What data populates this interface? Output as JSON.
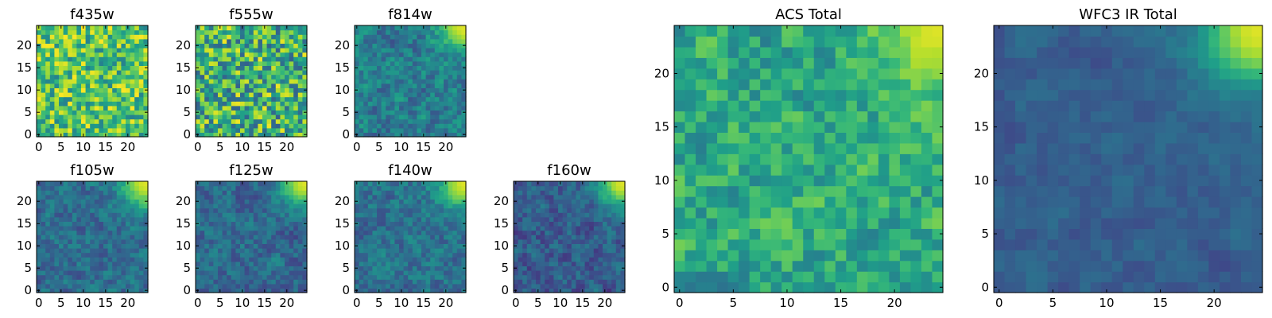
{
  "chart_data": [
    {
      "id": "f435w",
      "type": "heatmap",
      "title": "f435w",
      "grid_size": 25,
      "x_ticks": [
        0,
        5,
        10,
        15,
        20
      ],
      "y_ticks": [
        0,
        5,
        10,
        15,
        20
      ],
      "colormap": "viridis",
      "pattern": "noise",
      "base": 0.72,
      "noise": 0.28,
      "corner": 0.0,
      "seed": 11
    },
    {
      "id": "f555w",
      "type": "heatmap",
      "title": "f555w",
      "grid_size": 25,
      "x_ticks": [
        0,
        5,
        10,
        15,
        20
      ],
      "y_ticks": [
        0,
        5,
        10,
        15,
        20
      ],
      "colormap": "viridis",
      "pattern": "noise",
      "base": 0.64,
      "noise": 0.34,
      "corner": 0.0,
      "seed": 23
    },
    {
      "id": "f814w",
      "type": "heatmap",
      "title": "f814w",
      "grid_size": 25,
      "x_ticks": [
        0,
        5,
        10,
        15,
        20
      ],
      "y_ticks": [
        0,
        5,
        10,
        15,
        20
      ],
      "colormap": "viridis",
      "pattern": "corner",
      "base": 0.42,
      "noise": 0.24,
      "corner": 0.95,
      "seed": 37
    },
    {
      "id": "f105w",
      "type": "heatmap",
      "title": "f105w",
      "grid_size": 25,
      "x_ticks": [
        0,
        5,
        10,
        15,
        20
      ],
      "y_ticks": [
        0,
        5,
        10,
        15,
        20
      ],
      "colormap": "viridis",
      "pattern": "corner",
      "base": 0.36,
      "noise": 0.2,
      "corner": 0.95,
      "seed": 41
    },
    {
      "id": "f125w",
      "type": "heatmap",
      "title": "f125w",
      "grid_size": 25,
      "x_ticks": [
        0,
        5,
        10,
        15,
        20
      ],
      "y_ticks": [
        0,
        5,
        10,
        15,
        20
      ],
      "colormap": "viridis",
      "pattern": "corner",
      "base": 0.34,
      "noise": 0.2,
      "corner": 0.95,
      "seed": 53
    },
    {
      "id": "f140w",
      "type": "heatmap",
      "title": "f140w",
      "grid_size": 25,
      "x_ticks": [
        0,
        5,
        10,
        15,
        20
      ],
      "y_ticks": [
        0,
        5,
        10,
        15,
        20
      ],
      "colormap": "viridis",
      "pattern": "corner",
      "base": 0.38,
      "noise": 0.2,
      "corner": 0.95,
      "seed": 67
    },
    {
      "id": "f160w",
      "type": "heatmap",
      "title": "f160w",
      "grid_size": 25,
      "x_ticks": [
        0,
        5,
        10,
        15,
        20
      ],
      "y_ticks": [
        0,
        5,
        10,
        15,
        20
      ],
      "colormap": "viridis",
      "pattern": "corner",
      "base": 0.3,
      "noise": 0.2,
      "corner": 0.95,
      "seed": 79
    },
    {
      "id": "acs-total",
      "type": "heatmap",
      "title": "ACS Total",
      "grid_size": 25,
      "x_ticks": [
        0,
        5,
        10,
        15,
        20
      ],
      "y_ticks": [
        0,
        5,
        10,
        15,
        20
      ],
      "colormap": "viridis",
      "pattern": "corner",
      "base": 0.6,
      "noise": 0.26,
      "corner": 0.95,
      "seed": 97
    },
    {
      "id": "wfc3-ir-total",
      "type": "heatmap",
      "title": "WFC3 IR Total",
      "grid_size": 25,
      "x_ticks": [
        0,
        5,
        10,
        15,
        20
      ],
      "y_ticks": [
        0,
        5,
        10,
        15,
        20
      ],
      "colormap": "viridis",
      "pattern": "smooth-corner",
      "base": 0.3,
      "noise": 0.14,
      "corner": 0.95,
      "seed": 113
    }
  ]
}
